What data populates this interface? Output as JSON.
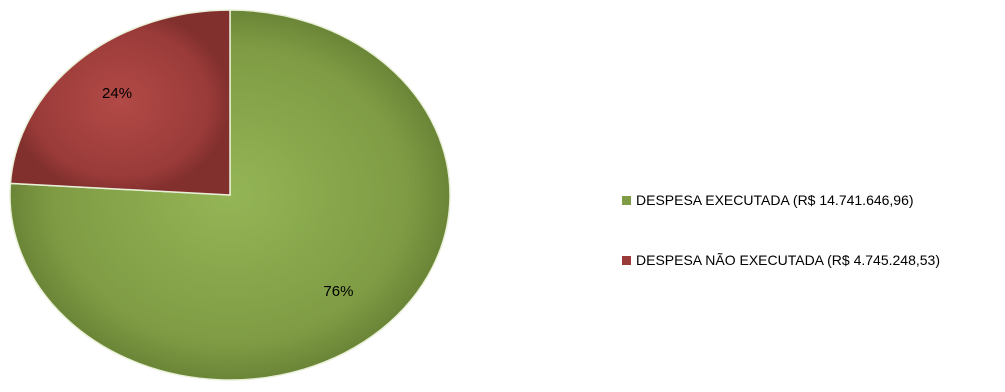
{
  "chart_data": {
    "type": "pie",
    "title": "",
    "series": [
      {
        "name": "DESPESA EXECUTADA (R$ 14.741.646,96)",
        "value": 76,
        "label": "76%",
        "color": "#7f9c44"
      },
      {
        "name": "DESPESA NÃO EXECUTADA (R$ 4.745.248,53)",
        "value": 24,
        "label": "24%",
        "color": "#9a3b39"
      }
    ],
    "legend_position": "right"
  }
}
